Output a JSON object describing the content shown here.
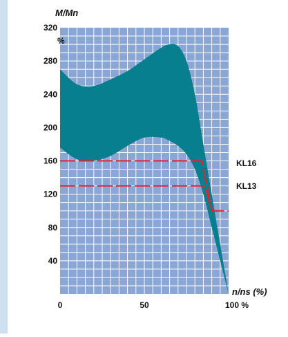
{
  "chart_data": {
    "type": "area",
    "ylabel": "M/Mn",
    "y_unit": "%",
    "xlabel": "n/ns (%)",
    "xlim": [
      0,
      100
    ],
    "ylim": [
      0,
      320
    ],
    "x_ticks": [
      "0",
      "50",
      "100 %"
    ],
    "y_ticks": [
      40,
      80,
      120,
      160,
      200,
      240,
      280,
      320
    ],
    "grid": true,
    "background_color": "#8aa6d4",
    "grid_color": "#ffffff",
    "band_color": "#087f8e",
    "limit_color": "#e8202a",
    "band": {
      "name": "",
      "x": [
        0,
        10,
        20,
        30,
        40,
        50,
        60,
        65,
        70,
        75,
        80,
        85,
        90,
        95,
        100
      ],
      "upper": [
        270,
        252,
        250,
        258,
        268,
        282,
        296,
        300,
        298,
        280,
        240,
        180,
        120,
        60,
        0
      ],
      "lower": [
        176,
        162,
        160,
        166,
        178,
        188,
        188,
        184,
        178,
        168,
        150,
        120,
        80,
        40,
        0
      ]
    },
    "limits": [
      {
        "name": "KL16",
        "x": [
          0,
          84,
          90
        ],
        "y": [
          160,
          160,
          100
        ]
      },
      {
        "name": "KL13",
        "x": [
          0,
          86,
          90,
          100
        ],
        "y": [
          130,
          130,
          100,
          100
        ]
      }
    ],
    "annotations": [
      "KL16",
      "KL13"
    ]
  }
}
